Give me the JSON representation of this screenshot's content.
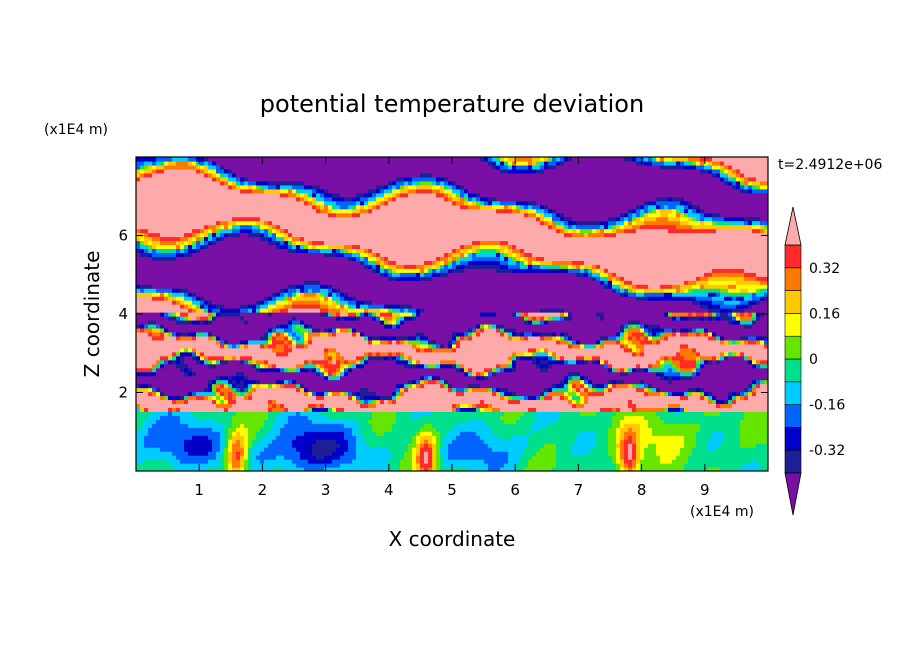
{
  "chart_data": {
    "type": "heatmap",
    "title": "potential temperature deviation",
    "xlabel": "X coordinate",
    "ylabel": "Z coordinate",
    "x_unit": "(x1E4 m)",
    "y_unit": "(x1E4 m)",
    "time_label": "t=2.4912e+06",
    "xlim": [
      0,
      10
    ],
    "ylim": [
      0,
      8
    ],
    "x_ticks": [
      1,
      2,
      3,
      4,
      5,
      6,
      7,
      8,
      9
    ],
    "y_ticks": [
      2,
      4,
      6
    ],
    "x_tick_labels": [
      "1",
      "2",
      "3",
      "4",
      "5",
      "6",
      "7",
      "8",
      "9"
    ],
    "y_tick_labels": [
      "2",
      "4",
      "6"
    ],
    "grid": false,
    "colorbar": {
      "levels": [
        -0.4,
        -0.32,
        -0.24,
        -0.16,
        -0.08,
        0,
        0.08,
        0.16,
        0.24,
        0.32,
        0.4
      ],
      "labels": [
        "0.32",
        "0.16",
        "0",
        "-0.16",
        "-0.32"
      ],
      "label_values": [
        0.32,
        0.16,
        0,
        -0.16,
        -0.32
      ],
      "colors_low_to_high": [
        "#1e1e96",
        "#0000c8",
        "#0064ff",
        "#00ccff",
        "#00e08c",
        "#64e600",
        "#ffff00",
        "#ffc800",
        "#ff7800",
        "#ff2a2a"
      ],
      "under_color": "#7a0fa6",
      "over_color": "#ffaaaa",
      "extend": "both"
    },
    "features": {
      "upper_bands": {
        "z_range": [
          4.2,
          8.0
        ],
        "colors": [
          "#ffaaaa",
          "#7a0fa6"
        ],
        "description_hidden": true
      },
      "turbulent_layer": {
        "z_range": [
          1.5,
          4.2
        ]
      },
      "lower_layer": {
        "z_range": [
          0,
          1.6
        ],
        "warm_plumes_x": [
          1.6,
          4.6,
          7.8
        ],
        "cold_patches_x": [
          0.6,
          2.6,
          5.4
        ]
      }
    }
  }
}
